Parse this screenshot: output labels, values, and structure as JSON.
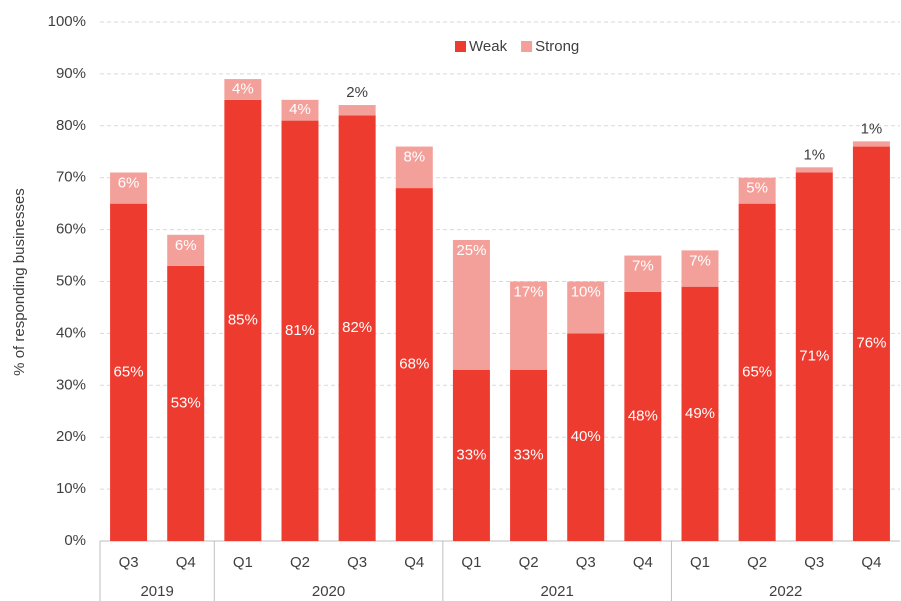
{
  "chart_data": {
    "type": "stacked_bar",
    "y_label": "% of responding businesses",
    "categories": [
      "Q3",
      "Q4",
      "Q1",
      "Q2",
      "Q3",
      "Q4",
      "Q1",
      "Q2",
      "Q3",
      "Q4",
      "Q1",
      "Q2",
      "Q3",
      "Q4"
    ],
    "years": [
      "2019",
      "2019",
      "2020",
      "2020",
      "2020",
      "2020",
      "2021",
      "2021",
      "2021",
      "2021",
      "2022",
      "2022",
      "2022",
      "2022"
    ],
    "series": [
      {
        "name": "Weak",
        "color": "#ee3b2f",
        "values": [
          65,
          53,
          85,
          81,
          82,
          68,
          33,
          33,
          40,
          48,
          49,
          65,
          71,
          76
        ],
        "value_labels": [
          "65%",
          "53%",
          "85%",
          "81%",
          "82%",
          "68%",
          "33%",
          "33%",
          "40%",
          "48%",
          "49%",
          "65%",
          "71%",
          "76%"
        ]
      },
      {
        "name": "Strong",
        "color": "#f4a09a",
        "values": [
          6,
          6,
          4,
          4,
          2,
          8,
          25,
          17,
          10,
          7,
          7,
          5,
          1,
          1
        ],
        "value_labels": [
          "6%",
          "6%",
          "4%",
          "4%",
          "2%",
          "8%",
          "25%",
          "17%",
          "10%",
          "7%",
          "7%",
          "5%",
          "1%",
          "1%"
        ]
      }
    ],
    "ylim": [
      0,
      100
    ],
    "yticks": [
      {
        "value": 0,
        "label": "0%"
      },
      {
        "value": 10,
        "label": "10%"
      },
      {
        "value": 20,
        "label": "20%"
      },
      {
        "value": 30,
        "label": "30%"
      },
      {
        "value": 40,
        "label": "40%"
      },
      {
        "value": 50,
        "label": "50%"
      },
      {
        "value": 60,
        "label": "60%"
      },
      {
        "value": 70,
        "label": "70%"
      },
      {
        "value": 80,
        "label": "80%"
      },
      {
        "value": 90,
        "label": "90%"
      },
      {
        "value": 100,
        "label": "100%"
      }
    ],
    "grid": true,
    "legend": "top"
  }
}
